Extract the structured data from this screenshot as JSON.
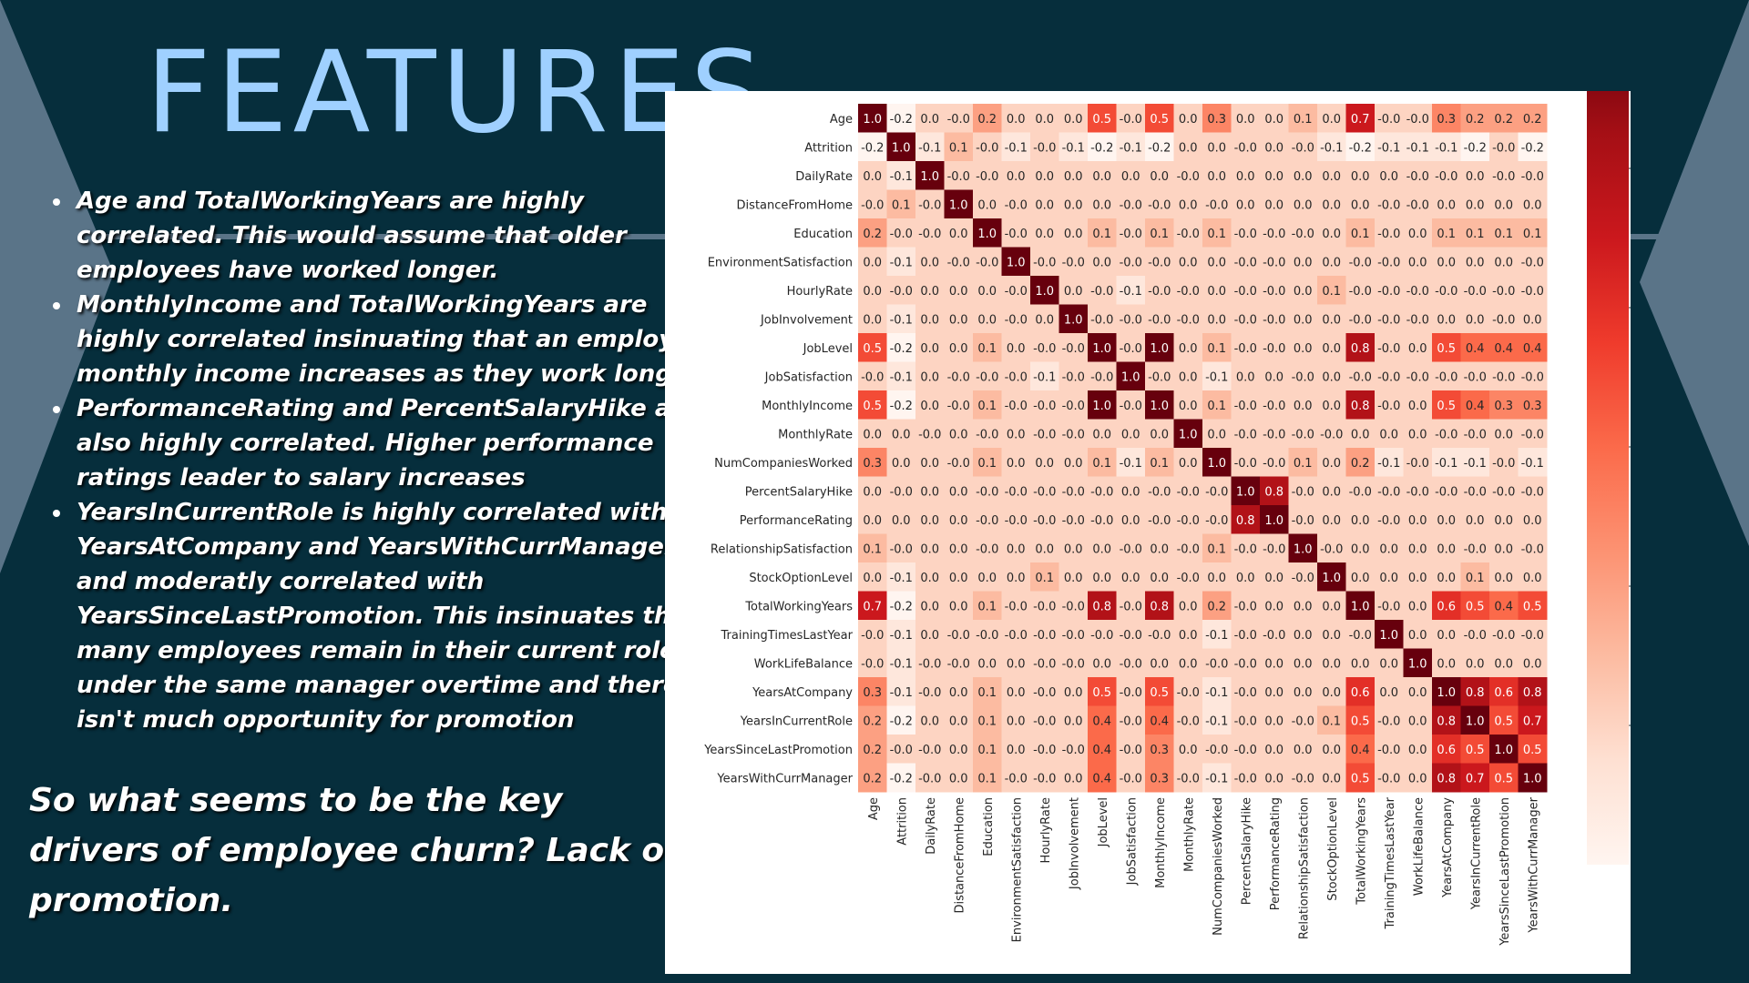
{
  "title": "FEATURES",
  "bullets": [
    "Age and TotalWorkingYears are highly correlated. This would assume that older employees have worked longer.",
    "MonthlyIncome and TotalWorkingYears are highly correlated insinuating that an employee's monthly income increases as they work longer",
    "PerformanceRating and PercentSalaryHike are also highly correlated. Higher performance ratings leader to salary increases",
    "YearsInCurrentRole is highly correlated with YearsAtCompany and YearsWithCurrManager and moderatly correlated with YearsSinceLastPromotion. This insinuates that many employees remain in their current role under the same manager overtime and there isn't much opportunity for promotion"
  ],
  "conclusion": "So what seems to be the key drivers of employee churn? Lack of promotion.",
  "colors": {
    "background": "#062e3c",
    "title": "#9fd0ff",
    "bullet_text": "#ffffff",
    "decor_shape": "#5a7488",
    "heatmap_low": "#fff5f0",
    "heatmap_high": "#67000d"
  },
  "chart_data": {
    "type": "heatmap",
    "labels": [
      "Age",
      "Attrition",
      "DailyRate",
      "DistanceFromHome",
      "Education",
      "EnvironmentSatisfaction",
      "HourlyRate",
      "JobInvolvement",
      "JobLevel",
      "JobSatisfaction",
      "MonthlyIncome",
      "MonthlyRate",
      "NumCompaniesWorked",
      "PercentSalaryHike",
      "PerformanceRating",
      "RelationshipSatisfaction",
      "StockOptionLevel",
      "TotalWorkingYears",
      "TrainingTimesLastYear",
      "WorkLifeBalance",
      "YearsAtCompany",
      "YearsInCurrentRole",
      "YearsSinceLastPromotion",
      "YearsWithCurrManager"
    ],
    "matrix": [
      [
        "1.0",
        "-0.2",
        "0.0",
        "-0.0",
        "0.2",
        "0.0",
        "0.0",
        "0.0",
        "0.5",
        "-0.0",
        "0.5",
        "0.0",
        "0.3",
        "0.0",
        "0.0",
        "0.1",
        "0.0",
        "0.7",
        "-0.0",
        "-0.0",
        "0.3",
        "0.2",
        "0.2",
        "0.2"
      ],
      [
        "-0.2",
        "1.0",
        "-0.1",
        "0.1",
        "-0.0",
        "-0.1",
        "-0.0",
        "-0.1",
        "-0.2",
        "-0.1",
        "-0.2",
        "0.0",
        "0.0",
        "-0.0",
        "0.0",
        "-0.0",
        "-0.1",
        "-0.2",
        "-0.1",
        "-0.1",
        "-0.1",
        "-0.2",
        "-0.0",
        "-0.2"
      ],
      [
        "0.0",
        "-0.1",
        "1.0",
        "-0.0",
        "-0.0",
        "0.0",
        "0.0",
        "0.0",
        "0.0",
        "0.0",
        "0.0",
        "-0.0",
        "0.0",
        "0.0",
        "0.0",
        "0.0",
        "0.0",
        "0.0",
        "0.0",
        "-0.0",
        "-0.0",
        "0.0",
        "-0.0",
        "-0.0"
      ],
      [
        "-0.0",
        "0.1",
        "-0.0",
        "1.0",
        "0.0",
        "-0.0",
        "0.0",
        "0.0",
        "0.0",
        "-0.0",
        "-0.0",
        "0.0",
        "-0.0",
        "0.0",
        "0.0",
        "0.0",
        "0.0",
        "0.0",
        "-0.0",
        "-0.0",
        "0.0",
        "0.0",
        "0.0",
        "0.0"
      ],
      [
        "0.2",
        "-0.0",
        "-0.0",
        "0.0",
        "1.0",
        "-0.0",
        "0.0",
        "0.0",
        "0.1",
        "-0.0",
        "0.1",
        "-0.0",
        "0.1",
        "-0.0",
        "-0.0",
        "-0.0",
        "0.0",
        "0.1",
        "-0.0",
        "0.0",
        "0.1",
        "0.1",
        "0.1",
        "0.1"
      ],
      [
        "0.0",
        "-0.1",
        "0.0",
        "-0.0",
        "-0.0",
        "1.0",
        "-0.0",
        "-0.0",
        "0.0",
        "-0.0",
        "-0.0",
        "0.0",
        "0.0",
        "-0.0",
        "-0.0",
        "0.0",
        "0.0",
        "-0.0",
        "-0.0",
        "0.0",
        "0.0",
        "0.0",
        "0.0",
        "-0.0"
      ],
      [
        "0.0",
        "-0.0",
        "0.0",
        "0.0",
        "0.0",
        "-0.0",
        "1.0",
        "0.0",
        "-0.0",
        "-0.1",
        "-0.0",
        "-0.0",
        "0.0",
        "-0.0",
        "-0.0",
        "0.0",
        "0.1",
        "-0.0",
        "-0.0",
        "-0.0",
        "-0.0",
        "-0.0",
        "-0.0",
        "-0.0"
      ],
      [
        "0.0",
        "-0.1",
        "0.0",
        "0.0",
        "0.0",
        "-0.0",
        "0.0",
        "1.0",
        "-0.0",
        "-0.0",
        "-0.0",
        "-0.0",
        "0.0",
        "-0.0",
        "-0.0",
        "0.0",
        "0.0",
        "-0.0",
        "-0.0",
        "-0.0",
        "0.0",
        "0.0",
        "-0.0",
        "0.0"
      ],
      [
        "0.5",
        "-0.2",
        "0.0",
        "0.0",
        "0.1",
        "0.0",
        "-0.0",
        "-0.0",
        "1.0",
        "-0.0",
        "1.0",
        "0.0",
        "0.1",
        "-0.0",
        "-0.0",
        "0.0",
        "0.0",
        "0.8",
        "-0.0",
        "0.0",
        "0.5",
        "0.4",
        "0.4",
        "0.4"
      ],
      [
        "-0.0",
        "-0.1",
        "0.0",
        "-0.0",
        "-0.0",
        "-0.0",
        "-0.1",
        "-0.0",
        "-0.0",
        "1.0",
        "-0.0",
        "0.0",
        "-0.1",
        "0.0",
        "0.0",
        "-0.0",
        "0.0",
        "-0.0",
        "-0.0",
        "-0.0",
        "-0.0",
        "-0.0",
        "-0.0",
        "-0.0"
      ],
      [
        "0.5",
        "-0.2",
        "0.0",
        "-0.0",
        "0.1",
        "-0.0",
        "-0.0",
        "-0.0",
        "1.0",
        "-0.0",
        "1.0",
        "0.0",
        "0.1",
        "-0.0",
        "-0.0",
        "0.0",
        "0.0",
        "0.8",
        "-0.0",
        "0.0",
        "0.5",
        "0.4",
        "0.3",
        "0.3"
      ],
      [
        "0.0",
        "0.0",
        "-0.0",
        "0.0",
        "-0.0",
        "0.0",
        "-0.0",
        "-0.0",
        "0.0",
        "0.0",
        "0.0",
        "1.0",
        "0.0",
        "-0.0",
        "-0.0",
        "-0.0",
        "-0.0",
        "0.0",
        "0.0",
        "0.0",
        "-0.0",
        "-0.0",
        "0.0",
        "-0.0"
      ],
      [
        "0.3",
        "0.0",
        "0.0",
        "-0.0",
        "0.1",
        "0.0",
        "0.0",
        "0.0",
        "0.1",
        "-0.1",
        "0.1",
        "0.0",
        "1.0",
        "-0.0",
        "-0.0",
        "0.1",
        "0.0",
        "0.2",
        "-0.1",
        "-0.0",
        "-0.1",
        "-0.1",
        "-0.0",
        "-0.1"
      ],
      [
        "0.0",
        "-0.0",
        "0.0",
        "0.0",
        "-0.0",
        "-0.0",
        "-0.0",
        "-0.0",
        "-0.0",
        "0.0",
        "-0.0",
        "-0.0",
        "-0.0",
        "1.0",
        "0.8",
        "-0.0",
        "0.0",
        "-0.0",
        "-0.0",
        "-0.0",
        "-0.0",
        "-0.0",
        "-0.0",
        "-0.0"
      ],
      [
        "0.0",
        "0.0",
        "0.0",
        "0.0",
        "-0.0",
        "-0.0",
        "-0.0",
        "-0.0",
        "-0.0",
        "0.0",
        "-0.0",
        "-0.0",
        "-0.0",
        "0.8",
        "1.0",
        "-0.0",
        "0.0",
        "0.0",
        "-0.0",
        "0.0",
        "0.0",
        "0.0",
        "0.0",
        "0.0"
      ],
      [
        "0.1",
        "-0.0",
        "0.0",
        "0.0",
        "-0.0",
        "0.0",
        "0.0",
        "0.0",
        "0.0",
        "-0.0",
        "0.0",
        "-0.0",
        "0.1",
        "-0.0",
        "-0.0",
        "1.0",
        "-0.0",
        "0.0",
        "0.0",
        "0.0",
        "0.0",
        "-0.0",
        "0.0",
        "-0.0"
      ],
      [
        "0.0",
        "-0.1",
        "0.0",
        "0.0",
        "0.0",
        "0.0",
        "0.1",
        "0.0",
        "0.0",
        "0.0",
        "0.0",
        "-0.0",
        "0.0",
        "0.0",
        "0.0",
        "-0.0",
        "1.0",
        "0.0",
        "0.0",
        "0.0",
        "0.0",
        "0.1",
        "0.0",
        "0.0"
      ],
      [
        "0.7",
        "-0.2",
        "0.0",
        "0.0",
        "0.1",
        "-0.0",
        "-0.0",
        "-0.0",
        "0.8",
        "-0.0",
        "0.8",
        "0.0",
        "0.2",
        "-0.0",
        "0.0",
        "0.0",
        "0.0",
        "1.0",
        "-0.0",
        "0.0",
        "0.6",
        "0.5",
        "0.4",
        "0.5"
      ],
      [
        "-0.0",
        "-0.1",
        "0.0",
        "-0.0",
        "-0.0",
        "-0.0",
        "-0.0",
        "-0.0",
        "-0.0",
        "-0.0",
        "-0.0",
        "0.0",
        "-0.1",
        "-0.0",
        "-0.0",
        "0.0",
        "0.0",
        "-0.0",
        "1.0",
        "0.0",
        "0.0",
        "-0.0",
        "-0.0",
        "-0.0"
      ],
      [
        "-0.0",
        "-0.1",
        "-0.0",
        "-0.0",
        "0.0",
        "0.0",
        "-0.0",
        "-0.0",
        "0.0",
        "-0.0",
        "0.0",
        "0.0",
        "-0.0",
        "-0.0",
        "0.0",
        "0.0",
        "0.0",
        "0.0",
        "0.0",
        "1.0",
        "0.0",
        "0.0",
        "0.0",
        "0.0"
      ],
      [
        "0.3",
        "-0.1",
        "-0.0",
        "0.0",
        "0.1",
        "0.0",
        "-0.0",
        "0.0",
        "0.5",
        "-0.0",
        "0.5",
        "-0.0",
        "-0.1",
        "-0.0",
        "0.0",
        "0.0",
        "0.0",
        "0.6",
        "0.0",
        "0.0",
        "1.0",
        "0.8",
        "0.6",
        "0.8"
      ],
      [
        "0.2",
        "-0.2",
        "0.0",
        "0.0",
        "0.1",
        "0.0",
        "-0.0",
        "0.0",
        "0.4",
        "-0.0",
        "0.4",
        "-0.0",
        "-0.1",
        "-0.0",
        "0.0",
        "-0.0",
        "0.1",
        "0.5",
        "-0.0",
        "0.0",
        "0.8",
        "1.0",
        "0.5",
        "0.7"
      ],
      [
        "0.2",
        "-0.0",
        "-0.0",
        "0.0",
        "0.1",
        "0.0",
        "-0.0",
        "-0.0",
        "0.4",
        "-0.0",
        "0.3",
        "0.0",
        "-0.0",
        "-0.0",
        "0.0",
        "0.0",
        "0.0",
        "0.4",
        "-0.0",
        "0.0",
        "0.6",
        "0.5",
        "1.0",
        "0.5"
      ],
      [
        "0.2",
        "-0.2",
        "-0.0",
        "0.0",
        "0.1",
        "-0.0",
        "-0.0",
        "0.0",
        "0.4",
        "-0.0",
        "0.3",
        "-0.0",
        "-0.1",
        "-0.0",
        "0.0",
        "-0.0",
        "0.0",
        "0.5",
        "-0.0",
        "0.0",
        "0.8",
        "0.7",
        "0.5",
        "1.0"
      ]
    ],
    "colorbar": {
      "range": [
        -0.2,
        1.0
      ],
      "ticks": [
        "0.0",
        "0.2",
        "0.4",
        "0.6",
        "0.8",
        "1.0"
      ]
    }
  }
}
